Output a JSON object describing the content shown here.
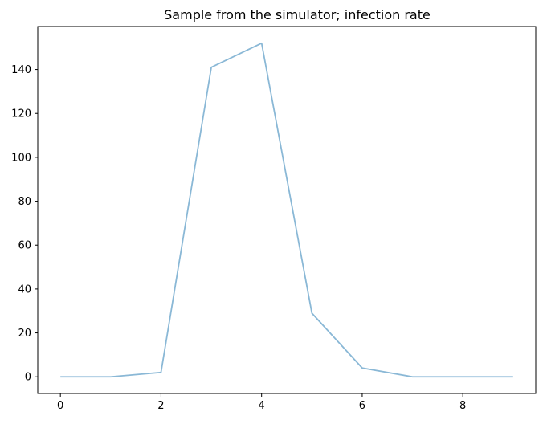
{
  "chart_data": {
    "type": "line",
    "title": "Sample from the simulator; infection rate",
    "xlabel": "",
    "ylabel": "",
    "xlim": [
      -0.45,
      9.45
    ],
    "ylim": [
      -7.6,
      159.6
    ],
    "grid": false,
    "x_ticks": [
      0,
      2,
      4,
      6,
      8
    ],
    "y_ticks": [
      0,
      20,
      40,
      60,
      80,
      100,
      120,
      140
    ],
    "series": [
      {
        "color": "#8ab8d6",
        "x": [
          0,
          1,
          2,
          3,
          4,
          5,
          6,
          7,
          8,
          9
        ],
        "y": [
          0,
          0,
          2,
          141,
          152,
          29,
          4,
          0,
          0,
          0
        ]
      }
    ]
  }
}
